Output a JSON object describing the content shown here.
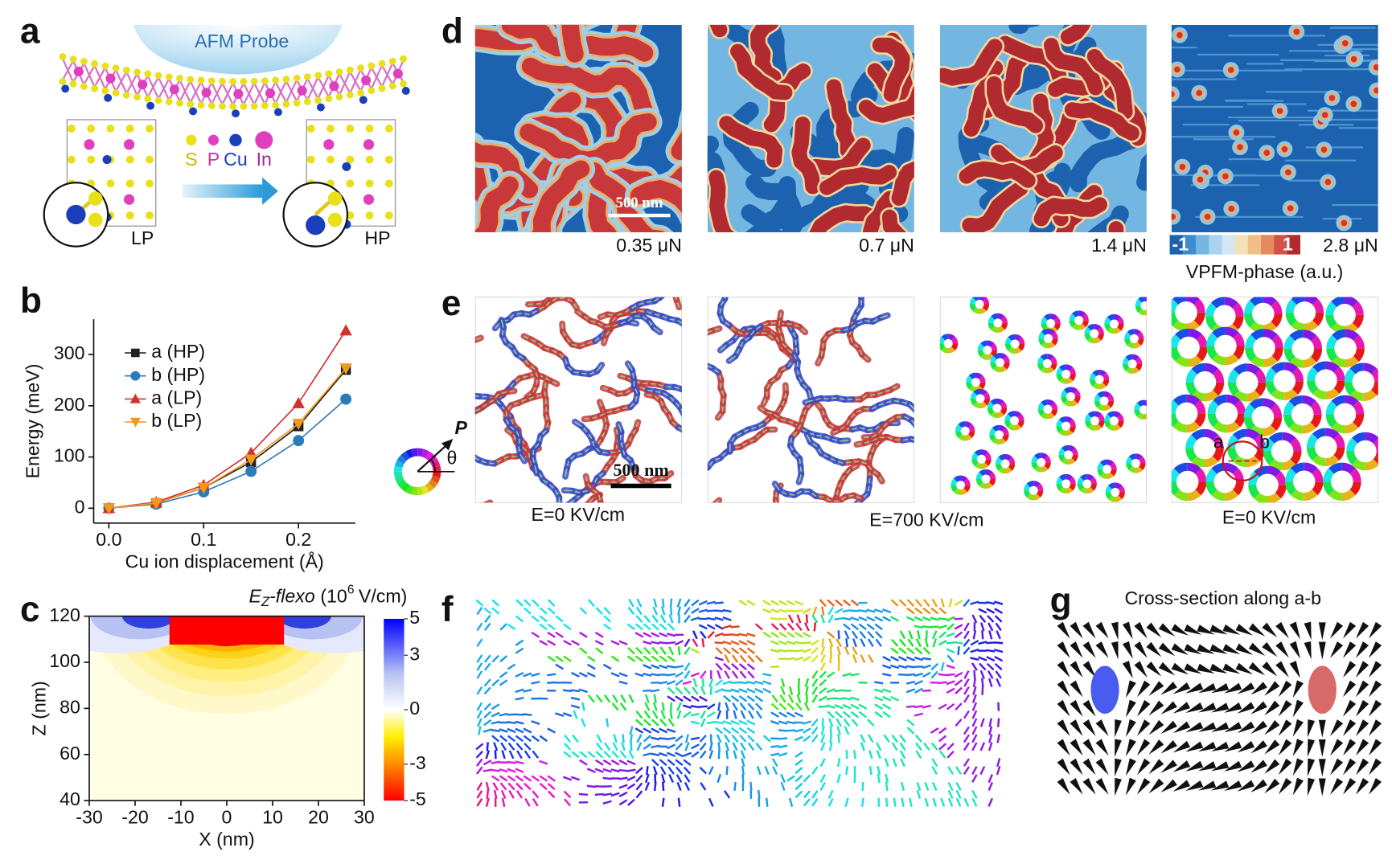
{
  "panel_labels": [
    "a",
    "b",
    "c",
    "d",
    "e",
    "f",
    "g"
  ],
  "panel_a": {
    "probe": "AFM Probe",
    "atoms": [
      "S",
      "P",
      "Cu",
      "In"
    ],
    "states": [
      "LP",
      "HP"
    ]
  },
  "panel_d": {
    "forces": [
      "0.35 μN",
      "0.7 μN",
      "1.4 μN",
      "2.8 μN"
    ],
    "scale_bar": "500 nm",
    "colorbar_ends": [
      "-1",
      "1"
    ],
    "colorbar_label": "VPFM-phase (a.u.)"
  },
  "panel_e": {
    "fields": [
      "E=0 KV/cm",
      "E=700 KV/cm",
      "E=0 KV/cm"
    ],
    "scale_bar": "500 nm",
    "polarization": "P",
    "angle": "θ",
    "points": [
      "a",
      "b"
    ]
  },
  "panel_g": {
    "title": "Cross-section along a-b"
  },
  "chart_data": [
    {
      "type": "line",
      "x_label": "Cu ion displacement (Å)",
      "y_label": "Energy (meV)",
      "x": [
        0,
        0.05,
        0.1,
        0.15,
        0.2,
        0.25
      ],
      "series": [
        {
          "name": "a (HP)",
          "color": "#222222",
          "marker": "square",
          "values": [
            0,
            10,
            40,
            90,
            160,
            270
          ]
        },
        {
          "name": "b (HP)",
          "color": "#2b7bba",
          "marker": "circle",
          "values": [
            0,
            8,
            32,
            72,
            132,
            213
          ]
        },
        {
          "name": "a (LP)",
          "color": "#d62f2f",
          "marker": "triangle-up",
          "values": [
            0,
            12,
            45,
            108,
            205,
            347
          ]
        },
        {
          "name": "b (LP)",
          "color": "#f39a1e",
          "marker": "triangle-down",
          "values": [
            0,
            10,
            40,
            95,
            165,
            273
          ]
        }
      ],
      "xlim": [
        -0.016,
        0.26
      ],
      "xticks": [
        {
          "value": 0,
          "label": "0.0"
        },
        0.1,
        0.2
      ],
      "ylim": [
        -29,
        369
      ],
      "yticks": [
        0,
        100,
        200,
        300
      ]
    },
    {
      "type": "contour",
      "x_label": "X (nm)",
      "y_label": "Z (nm)",
      "colorbar_label": {
        "symbol": "E",
        "subscript": "Z",
        "name": "-flexo",
        "prefix": "(10",
        "exponent": "6",
        "unit": "V/cm)"
      },
      "xlim": [
        -30,
        30
      ],
      "xticks": [
        -30,
        -20,
        -10,
        0,
        10,
        20,
        30
      ],
      "ylim": [
        40,
        120
      ],
      "yticks": [
        40,
        60,
        80,
        100,
        120
      ],
      "clim": [
        -5,
        5
      ],
      "cticks": [
        5,
        3,
        0,
        -3,
        -5
      ]
    }
  ]
}
